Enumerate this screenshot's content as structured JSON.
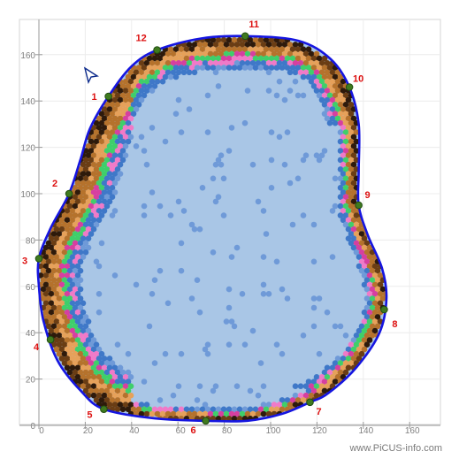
{
  "chart_data": {
    "type": "heatmap",
    "title": "",
    "xlabel": "",
    "ylabel": "",
    "xlim": [
      -2,
      166
    ],
    "ylim": [
      -2,
      176
    ],
    "x_ticks": [
      "0",
      "20",
      "40",
      "60",
      "80",
      "100",
      "120",
      "140",
      "160"
    ],
    "x_tick_values": [
      0,
      20,
      40,
      60,
      80,
      100,
      120,
      140,
      160
    ],
    "y_ticks": [
      "0",
      "20",
      "40",
      "60",
      "80",
      "100",
      "120",
      "140",
      "160"
    ],
    "y_tick_values": [
      0,
      20,
      40,
      60,
      80,
      100,
      120,
      140,
      160
    ],
    "grid": true,
    "sensor_points": [
      {
        "label": "1",
        "x": 30,
        "y": 142
      },
      {
        "label": "2",
        "x": 13,
        "y": 100
      },
      {
        "label": "3",
        "x": 0,
        "y": 72
      },
      {
        "label": "4",
        "x": 5,
        "y": 37
      },
      {
        "label": "5",
        "x": 28,
        "y": 7
      },
      {
        "label": "6",
        "x": 72,
        "y": 2
      },
      {
        "label": "7",
        "x": 117,
        "y": 10
      },
      {
        "label": "8",
        "x": 149,
        "y": 50
      },
      {
        "label": "9",
        "x": 138,
        "y": 95
      },
      {
        "label": "10",
        "x": 134,
        "y": 146
      },
      {
        "label": "11",
        "x": 89,
        "y": 168
      },
      {
        "label": "12",
        "x": 51,
        "y": 162
      }
    ],
    "outline_points": [
      [
        30,
        142
      ],
      [
        40,
        155
      ],
      [
        51,
        162
      ],
      [
        70,
        167
      ],
      [
        89,
        168
      ],
      [
        112,
        166
      ],
      [
        126,
        158
      ],
      [
        134,
        146
      ],
      [
        138,
        130
      ],
      [
        138,
        110
      ],
      [
        138,
        95
      ],
      [
        142,
        82
      ],
      [
        148,
        68
      ],
      [
        150,
        55
      ],
      [
        147,
        40
      ],
      [
        137,
        25
      ],
      [
        125,
        14
      ],
      [
        117,
        10
      ],
      [
        105,
        5
      ],
      [
        90,
        2
      ],
      [
        72,
        2
      ],
      [
        50,
        3
      ],
      [
        28,
        7
      ],
      [
        18,
        15
      ],
      [
        8,
        28
      ],
      [
        2,
        45
      ],
      [
        0,
        60
      ],
      [
        0,
        72
      ],
      [
        5,
        85
      ],
      [
        13,
        100
      ],
      [
        18,
        115
      ],
      [
        22,
        128
      ]
    ],
    "colors": {
      "outline": "#1515e0",
      "interior": "#a9c6e6",
      "sensor_point": "#3f7a1f"
    },
    "watermark": "www.PiCUS-info.com"
  }
}
